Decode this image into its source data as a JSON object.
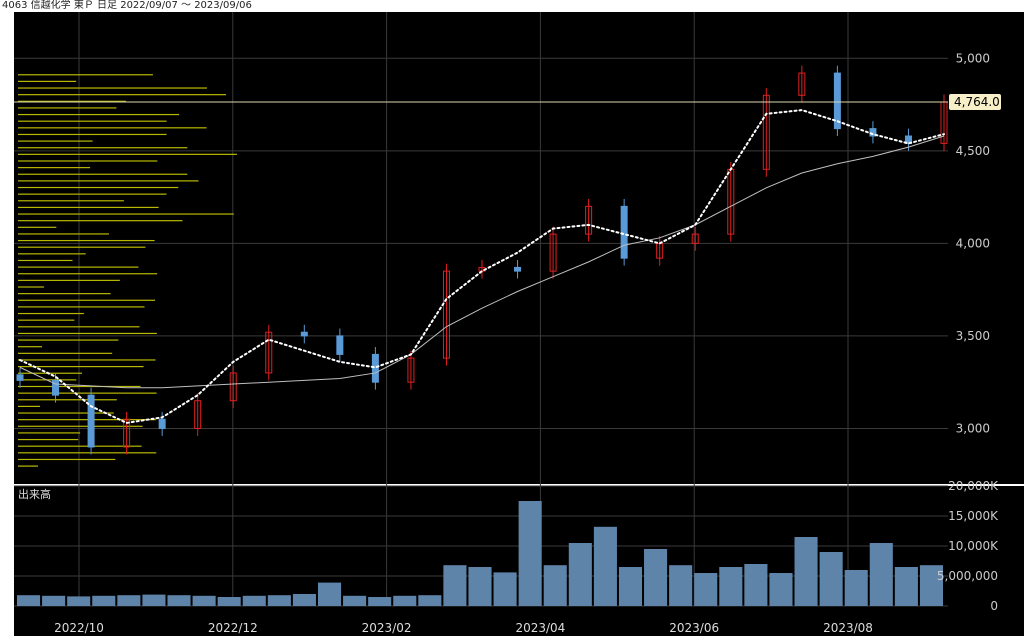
{
  "header": {
    "code": "4063",
    "name": "信越化学",
    "market": "東Ｐ",
    "period": "日足",
    "range": "2022/09/07 〜 2023/09/06"
  },
  "colors": {
    "background": "#000000",
    "grid": "#3a3a3a",
    "up_candle": "#e02020",
    "down_candle": "#5a9ad6",
    "volume_bar": "#5f84aa",
    "volume_profile": "#b8b800",
    "ma_short": "#ffffff",
    "ma_long": "#bfbfbf",
    "price_line": "#d8d8b0",
    "price_label_bg": "#f6efc8",
    "axis_text": "#cccccc"
  },
  "chart_data": [
    {
      "type": "candlestick",
      "title": "",
      "x_ticks": [
        "2022/10",
        "2022/12",
        "2023/02",
        "2023/04",
        "2023/06",
        "2023/08"
      ],
      "y_ticks": [
        "3,000",
        "3,500",
        "4,000",
        "4,500",
        "5,000"
      ],
      "ylim": [
        2700,
        5250
      ],
      "last_price_label": "4,764.0",
      "last_price": 4764,
      "series": [
        {
          "name": "",
          "kind": "candles",
          "dates": [
            "2022-09-07",
            "2022-09-21",
            "2022-10-05",
            "2022-10-19",
            "2022-11-02",
            "2022-11-16",
            "2022-11-30",
            "2022-12-14",
            "2022-12-28",
            "2023-01-11",
            "2023-01-25",
            "2023-02-08",
            "2023-02-22",
            "2023-03-08",
            "2023-03-22",
            "2023-04-05",
            "2023-04-19",
            "2023-05-03",
            "2023-05-17",
            "2023-05-31",
            "2023-06-14",
            "2023-06-28",
            "2023-07-12",
            "2023-07-26",
            "2023-08-09",
            "2023-08-23",
            "2023-09-06"
          ],
          "close": [
            3260,
            3180,
            2900,
            3050,
            3000,
            3150,
            3300,
            3520,
            3500,
            3400,
            3250,
            3380,
            3850,
            3870,
            3850,
            4050,
            4200,
            3920,
            4000,
            4050,
            4400,
            4800,
            4920,
            4620,
            4580,
            4540,
            4764
          ]
        },
        {
          "name": "",
          "kind": "ma_short",
          "values": [
            3370,
            3280,
            3120,
            3030,
            3060,
            3180,
            3360,
            3480,
            3420,
            3360,
            3330,
            3400,
            3700,
            3850,
            3950,
            4080,
            4100,
            4050,
            4000,
            4100,
            4400,
            4700,
            4720,
            4660,
            4590,
            4540,
            4590
          ]
        },
        {
          "name": "",
          "kind": "ma_long",
          "values": [
            3330,
            3240,
            3230,
            3220,
            3220,
            3230,
            3240,
            3250,
            3260,
            3270,
            3300,
            3400,
            3550,
            3650,
            3740,
            3820,
            3900,
            3990,
            4030,
            4100,
            4200,
            4300,
            4380,
            4430,
            4470,
            4520,
            4580
          ]
        }
      ]
    },
    {
      "type": "bar",
      "title": "出来高",
      "y_ticks": [
        "0",
        "5,000,000",
        "10,000K",
        "15,000K",
        "20,000K"
      ],
      "ylim": [
        0,
        20000
      ],
      "unit": "K shares",
      "values": [
        1800,
        1700,
        1600,
        1700,
        1800,
        1900,
        1800,
        1700,
        1500,
        1700,
        1800,
        2000,
        3900,
        1700,
        1500,
        1700,
        1800,
        6800,
        6500,
        5600,
        17500,
        6800,
        10500,
        13200,
        6500,
        9500,
        6800,
        5500,
        6500,
        7000,
        5500,
        11500,
        9000,
        6000,
        10500,
        6500,
        6800
      ]
    }
  ]
}
